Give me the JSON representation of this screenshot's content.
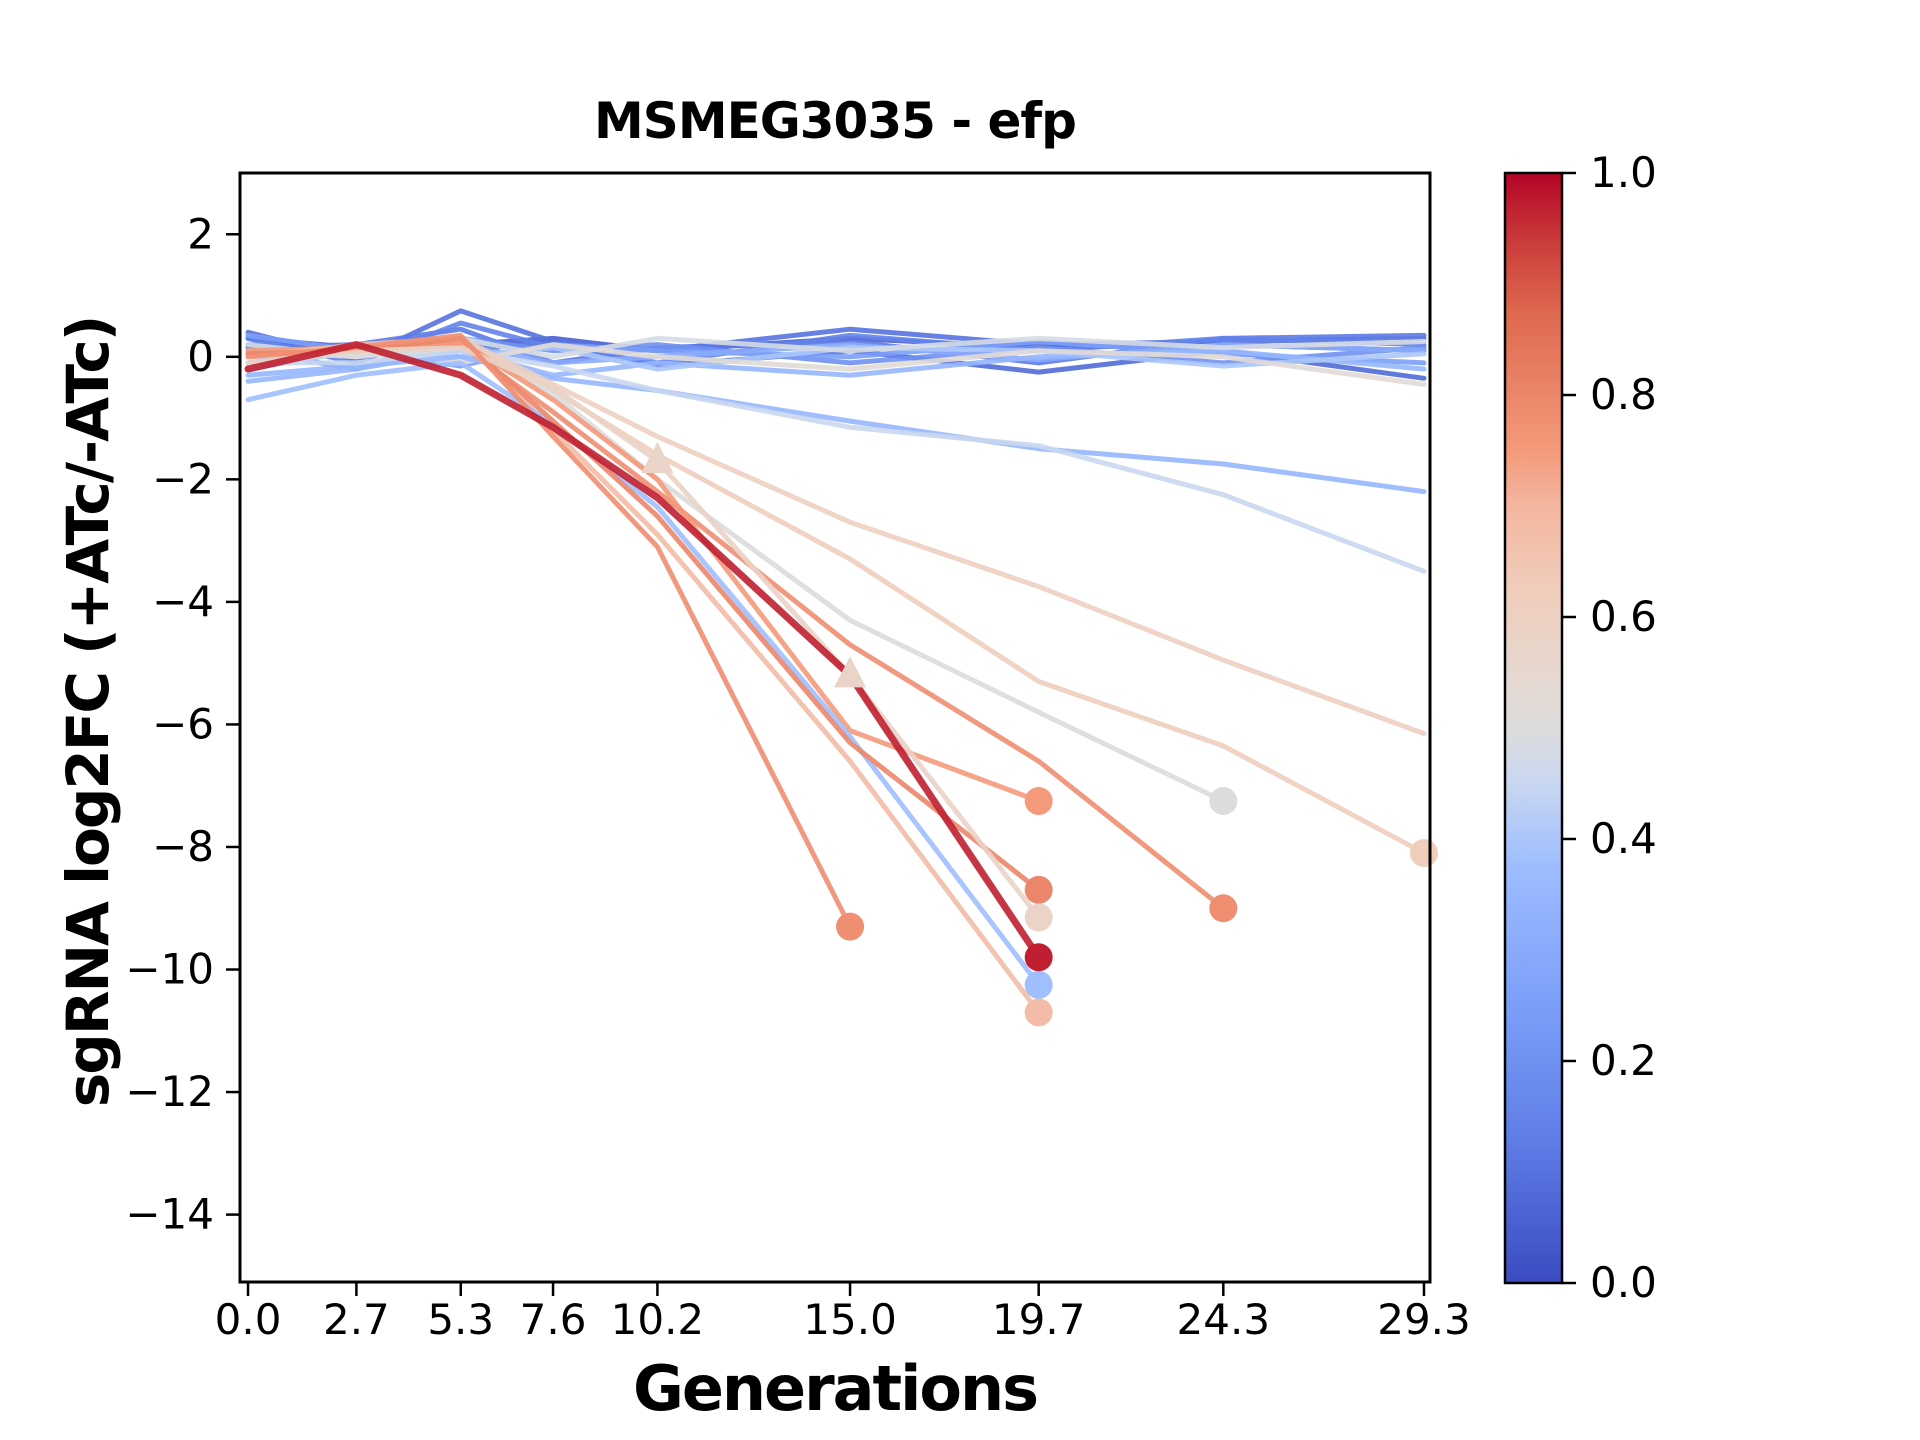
{
  "title": "MSMEG3035 - efp",
  "axes": {
    "xlabel": "Generations",
    "ylabel": "sgRNA log2FC (+ATc/-ATc)",
    "xlim": [
      -0.2,
      29.45
    ],
    "ylim": [
      -15.1,
      3.0
    ],
    "xticks": {
      "values": [
        0.0,
        2.7,
        5.3,
        7.6,
        10.2,
        15.0,
        19.7,
        24.3,
        29.3
      ],
      "labels": [
        "0.0",
        "2.7",
        "5.3",
        "7.6",
        "10.2",
        "15.0",
        "19.7",
        "24.3",
        "29.3"
      ]
    },
    "yticks": {
      "values": [
        2,
        0,
        -2,
        -4,
        -6,
        -8,
        -10,
        -12,
        -14
      ],
      "labels": [
        "2",
        "0",
        "−2",
        "−4",
        "−6",
        "−8",
        "−10",
        "−12",
        "−14"
      ]
    }
  },
  "colorbar": {
    "range": [
      0.0,
      1.0
    ],
    "tick_values": [
      0.0,
      0.2,
      0.4,
      0.6,
      0.8,
      1.0
    ],
    "tick_labels": [
      "0.0",
      "0.2",
      "0.4",
      "0.6",
      "0.8",
      "1.0"
    ]
  },
  "chart_data": {
    "type": "line",
    "title": "MSMEG3035 - efp",
    "xlabel": "Generations",
    "ylabel": "sgRNA log2FC (+ATc/-ATc)",
    "x": [
      0.0,
      2.7,
      5.3,
      7.6,
      10.2,
      15.0,
      19.7,
      24.3,
      29.3
    ],
    "xlim": [
      -0.2,
      29.45
    ],
    "ylim": [
      -15.1,
      3.0
    ],
    "grid": false,
    "legend": "colorbar-right",
    "colormap": {
      "name": "coolwarm",
      "stops": [
        [
          0.0,
          "#3B4CC0"
        ],
        [
          0.125,
          "#5D7CE6"
        ],
        [
          0.25,
          "#7B9FF9"
        ],
        [
          0.375,
          "#9DBDFF"
        ],
        [
          0.45,
          "#C9D7F0"
        ],
        [
          0.5,
          "#DDDCDC"
        ],
        [
          0.55,
          "#E6D7CF"
        ],
        [
          0.625,
          "#F0CDBB"
        ],
        [
          0.7,
          "#F4B69F"
        ],
        [
          0.75,
          "#F49A7B"
        ],
        [
          0.875,
          "#DE6850"
        ],
        [
          0.9375,
          "#CA3C3A"
        ],
        [
          1.0,
          "#B40426"
        ]
      ]
    },
    "series": [
      {
        "value": 0.05,
        "y": [
          0.3,
          0.15,
          0.2,
          0.3,
          0.1,
          0.3,
          0.15,
          0.2,
          0.1
        ]
      },
      {
        "value": 0.08,
        "y": [
          0.2,
          0.1,
          0.1,
          0.25,
          -0.15,
          0.1,
          -0.25,
          0.1,
          -0.35
        ]
      },
      {
        "value": 0.1,
        "y": [
          0.4,
          -0.05,
          0.75,
          0.25,
          0.1,
          0.45,
          0.2,
          0.25,
          0.3
        ]
      },
      {
        "value": 0.12,
        "y": [
          0.15,
          0.2,
          0.45,
          -0.1,
          0.15,
          0.25,
          -0.1,
          0.3,
          0.35
        ]
      },
      {
        "value": 0.15,
        "y": [
          0.3,
          -0.1,
          0.55,
          0.15,
          -0.1,
          0.35,
          0.1,
          0.3,
          0.2
        ]
      },
      {
        "value": 0.2,
        "y": [
          0.1,
          -0.2,
          0.3,
          0.1,
          0.2,
          -0.1,
          0.15,
          -0.1,
          0.15
        ]
      },
      {
        "value": 0.25,
        "y": [
          0.35,
          0.1,
          -0.15,
          0.2,
          0.1,
          0.0,
          0.25,
          0.05,
          -0.1
        ]
      },
      {
        "value": 0.3,
        "y": [
          -0.1,
          0.15,
          0.2,
          -0.1,
          0.0,
          0.2,
          -0.05,
          0.2,
          0.1
        ]
      },
      {
        "value": 0.35,
        "y": [
          -0.4,
          -0.2,
          0.1,
          -0.3,
          -0.1,
          -0.3,
          0.0,
          0.1,
          -0.2
        ]
      },
      {
        "value": 0.4,
        "y": [
          -0.2,
          0.1,
          0.0,
          0.15,
          -0.2,
          0.15,
          0.1,
          -0.15,
          0.05
        ]
      },
      {
        "value": 0.48,
        "y": [
          0.2,
          0.0,
          0.3,
          0.0,
          0.3,
          0.1,
          0.3,
          0.15,
          0.25
        ]
      },
      {
        "value": 0.52,
        "y": [
          -0.15,
          0.1,
          -0.1,
          0.2,
          0.0,
          -0.2,
          0.1,
          0.0,
          -0.45
        ]
      },
      {
        "value": 0.35,
        "y": [
          -0.3,
          -0.15,
          0.0,
          -0.35,
          -0.55,
          -1.05,
          -1.5,
          -1.75,
          -2.2
        ]
      },
      {
        "value": 0.45,
        "y": [
          -0.1,
          -0.1,
          0.1,
          -0.15,
          -0.55,
          -1.15,
          -1.45,
          -2.25,
          -3.5
        ]
      },
      {
        "value": 0.6,
        "y": [
          0.05,
          0.05,
          0.3,
          -0.45,
          -1.3,
          -2.7,
          -3.75,
          -4.95,
          -6.15
        ]
      },
      {
        "value": 0.62,
        "y": [
          0.0,
          0.1,
          0.25,
          -0.55,
          -1.6,
          -3.3,
          -5.3,
          -6.35,
          -8.1
        ],
        "end_marker": "circle"
      },
      {
        "value": 0.5,
        "y": [
          0.1,
          0.0,
          0.15,
          -0.6,
          -2.0,
          -4.3,
          -5.8,
          -7.25
        ],
        "end_marker": "circle"
      },
      {
        "value": 0.78,
        "y": [
          0.05,
          0.1,
          0.2,
          -0.9,
          -2.2,
          -4.7,
          -6.6,
          -9.0
        ],
        "end_marker": "circle"
      },
      {
        "value": 0.75,
        "y": [
          0.1,
          0.15,
          0.25,
          -0.7,
          -2.0,
          -6.1,
          -7.25
        ],
        "end_marker": "circle"
      },
      {
        "value": 0.68,
        "y": [
          0.0,
          0.2,
          0.3,
          -1.2,
          -2.9,
          -6.6,
          -10.7
        ],
        "end_marker": "circle"
      },
      {
        "value": 0.38,
        "y": [
          -0.7,
          -0.3,
          -0.1,
          -1.1,
          -2.45,
          -6.2,
          -10.25
        ],
        "end_marker": "circle"
      },
      {
        "value": 0.8,
        "y": [
          0.05,
          0.1,
          0.3,
          -1.05,
          -2.6,
          -6.3,
          -8.7
        ],
        "end_marker": "circle"
      },
      {
        "value": 0.58,
        "y": [
          -0.1,
          0.1,
          0.15,
          -0.5,
          -1.7,
          -5.2,
          -9.15
        ],
        "end_marker": "circle",
        "triangle_at": [
          4,
          5
        ]
      },
      {
        "value": 0.78,
        "y": [
          0.0,
          0.15,
          0.35,
          -1.3,
          -3.1,
          -9.3
        ],
        "end_marker": "circle"
      },
      {
        "value": 0.97,
        "y": [
          -0.2,
          0.2,
          -0.3,
          -1.15,
          -2.3,
          -5.2,
          -9.8
        ],
        "end_marker": "circle",
        "emphasis": true
      }
    ]
  }
}
